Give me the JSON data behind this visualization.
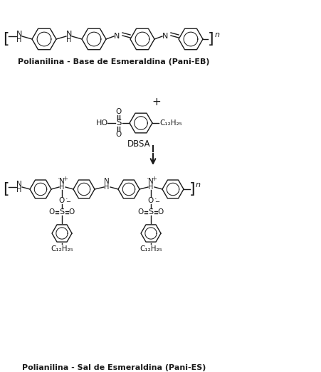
{
  "title_top": "Polianilina - Base de Esmeraldina (Pani-EB)",
  "title_bottom": "Polianilina - Sal de Esmeraldina (Pani-ES)",
  "dbsa_label": "DBSA",
  "plus_label": "+",
  "background_color": "#ffffff",
  "text_color": "#1a1a1a",
  "line_color": "#1a1a1a",
  "figsize": [
    4.52,
    5.23
  ],
  "dpi": 100
}
